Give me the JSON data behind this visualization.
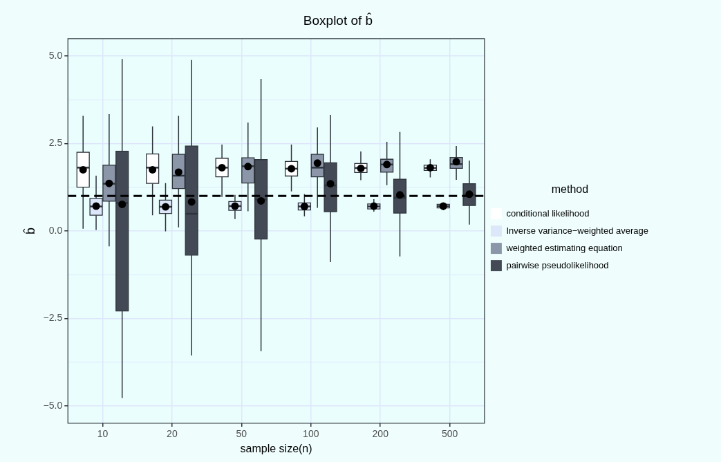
{
  "chart_data": {
    "type": "box",
    "title": "Boxplot of b̂",
    "xlabel": "sample size(n)",
    "ylabel": "b̂",
    "legend_title": "method",
    "legend": "right",
    "grid": true,
    "categories": [
      "10",
      "20",
      "50",
      "100",
      "200",
      "500"
    ],
    "ylim": [
      -5.5,
      5.5
    ],
    "yticks": [
      {
        "value": -5,
        "label": "−5.0"
      },
      {
        "value": -3.75,
        "label": null
      },
      {
        "value": -2.5,
        "label": "−2.5"
      },
      {
        "value": -1.25,
        "label": null
      },
      {
        "value": 0,
        "label": "0.0"
      },
      {
        "value": 1.25,
        "label": null
      },
      {
        "value": 2.5,
        "label": "2.5"
      },
      {
        "value": 3.75,
        "label": null
      },
      {
        "value": 5,
        "label": "5.0"
      }
    ],
    "ref_lines": [
      {
        "axis": "y",
        "value": 1,
        "label": null,
        "color": "#000000",
        "line_style": "dashed"
      }
    ],
    "series": [
      {
        "name": "conditional likelihood",
        "color": "#ffffff",
        "boxes": [
          {
            "low": 0.06,
            "q1": 1.25,
            "median": 1.81,
            "q3": 2.25,
            "high": 3.29,
            "mean": 1.75
          },
          {
            "low": 0.45,
            "q1": 1.36,
            "median": 1.81,
            "q3": 2.2,
            "high": 2.99,
            "mean": 1.75
          },
          {
            "low": 0.97,
            "q1": 1.55,
            "median": 1.81,
            "q3": 2.08,
            "high": 2.47,
            "mean": 1.81
          },
          {
            "low": 1.13,
            "q1": 1.57,
            "median": 1.78,
            "q3": 1.99,
            "high": 2.47,
            "mean": 1.78
          },
          {
            "low": 1.45,
            "q1": 1.67,
            "median": 1.8,
            "q3": 1.93,
            "high": 2.27,
            "mean": 1.79
          },
          {
            "low": 1.53,
            "q1": 1.73,
            "median": 1.8,
            "q3": 1.88,
            "high": 2.05,
            "mean": 1.81
          }
        ]
      },
      {
        "name": "Inverse variance−weighted average",
        "color": "#dde7fa",
        "boxes": [
          {
            "low": 0.03,
            "q1": 0.45,
            "median": 0.7,
            "q3": 0.93,
            "high": 1.58,
            "mean": 0.71
          },
          {
            "low": -0.01,
            "q1": 0.5,
            "median": 0.69,
            "q3": 0.88,
            "high": 1.37,
            "mean": 0.69
          },
          {
            "low": 0.34,
            "q1": 0.59,
            "median": 0.71,
            "q3": 0.84,
            "high": 1.03,
            "mean": 0.71
          },
          {
            "low": 0.42,
            "q1": 0.6,
            "median": 0.7,
            "q3": 0.8,
            "high": 1.05,
            "mean": 0.7
          },
          {
            "low": 0.55,
            "q1": 0.63,
            "median": 0.7,
            "q3": 0.77,
            "high": 0.91,
            "mean": 0.71
          },
          {
            "low": 0.59,
            "q1": 0.66,
            "median": 0.71,
            "q3": 0.76,
            "high": 0.81,
            "mean": 0.71
          }
        ]
      },
      {
        "name": "weighted estimating equation",
        "color": "#8b96a9",
        "boxes": [
          {
            "low": -0.44,
            "q1": 0.85,
            "median": 1.35,
            "q3": 1.88,
            "high": 3.34,
            "mean": 1.36
          },
          {
            "low": 0.1,
            "q1": 1.21,
            "median": 1.58,
            "q3": 2.19,
            "high": 3.29,
            "mean": 1.68
          },
          {
            "low": 0.56,
            "q1": 1.37,
            "median": 1.85,
            "q3": 2.09,
            "high": 3.1,
            "mean": 1.84
          },
          {
            "low": 0.66,
            "q1": 1.55,
            "median": 1.81,
            "q3": 2.19,
            "high": 2.96,
            "mean": 1.94
          },
          {
            "low": 1.31,
            "q1": 1.68,
            "median": 1.9,
            "q3": 2.05,
            "high": 2.55,
            "mean": 1.9
          },
          {
            "low": 1.46,
            "q1": 1.79,
            "median": 1.91,
            "q3": 2.1,
            "high": 2.43,
            "mean": 1.98
          }
        ]
      },
      {
        "name": "pairwise pseudolikelihood",
        "color": "#434a56",
        "boxes": [
          {
            "low": -4.78,
            "q1": -2.29,
            "median": 0.8,
            "q3": 2.28,
            "high": 4.92,
            "mean": 0.76
          },
          {
            "low": -3.56,
            "q1": -0.69,
            "median": 0.49,
            "q3": 2.43,
            "high": 4.89,
            "mean": 0.83
          },
          {
            "low": -3.44,
            "q1": -0.23,
            "median": 0.9,
            "q3": 2.04,
            "high": 4.35,
            "mean": 0.86
          },
          {
            "low": -0.89,
            "q1": 0.55,
            "median": 1.3,
            "q3": 1.95,
            "high": 3.32,
            "mean": 1.35
          },
          {
            "low": -0.73,
            "q1": 0.51,
            "median": 0.95,
            "q3": 1.48,
            "high": 2.83,
            "mean": 1.03
          },
          {
            "low": 0.18,
            "q1": 0.73,
            "median": 1.03,
            "q3": 1.35,
            "high": 2.01,
            "mean": 1.05
          }
        ]
      }
    ]
  }
}
